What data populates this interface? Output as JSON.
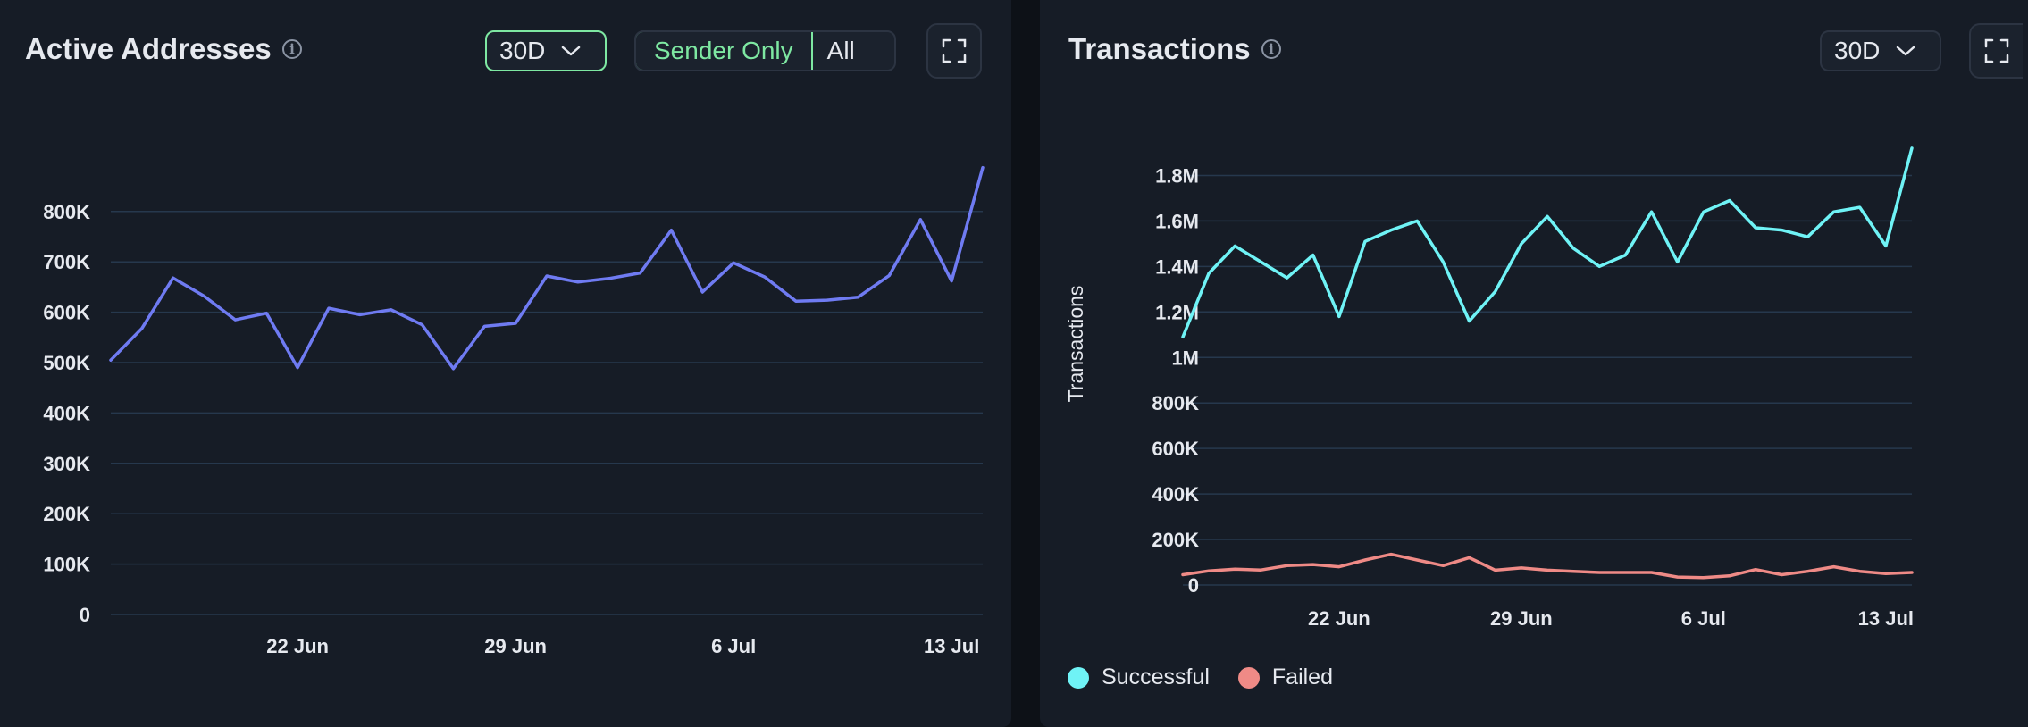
{
  "left": {
    "title": "Active Addresses",
    "range": "30D",
    "toggle": {
      "sender_only": "Sender Only",
      "all": "All"
    }
  },
  "right": {
    "title": "Transactions",
    "range": "30D",
    "legend": {
      "successful": "Successful",
      "failed": "Failed"
    }
  },
  "colors": {
    "addresses": "#6f7bf2",
    "successful": "#6ff3f6",
    "failed": "#ef8a86",
    "accent": "#7ee8a2"
  },
  "chart_data": [
    {
      "type": "line",
      "title": "Active Addresses",
      "ylim": [
        0,
        900000
      ],
      "yticks": [
        0,
        100000,
        200000,
        300000,
        400000,
        500000,
        600000,
        700000,
        800000
      ],
      "ytick_labels": [
        "0",
        "100K",
        "200K",
        "300K",
        "400K",
        "500K",
        "600K",
        "700K",
        "800K"
      ],
      "xticks": [
        {
          "label": "22 Jun",
          "index": 6
        },
        {
          "label": "29 Jun",
          "index": 13
        },
        {
          "label": "6 Jul",
          "index": 20
        },
        {
          "label": "13 Jul",
          "index": 27
        }
      ],
      "grid": true,
      "series": [
        {
          "values": [
            505000,
            568000,
            668000,
            632000,
            585000,
            598000,
            490000,
            608000,
            595000,
            605000,
            575000,
            488000,
            572000,
            578000,
            672000,
            660000,
            667000,
            678000,
            763000,
            640000,
            698000,
            670000,
            622000,
            624000,
            630000,
            673000,
            784000,
            662000,
            887000
          ]
        }
      ]
    },
    {
      "type": "line",
      "title": "Transactions",
      "ylabel": "Transactions",
      "ylim": [
        0,
        2000000
      ],
      "yticks": [
        0,
        200000,
        400000,
        600000,
        800000,
        1000000,
        1200000,
        1400000,
        1600000,
        1800000
      ],
      "ytick_labels": [
        "0",
        "200K",
        "400K",
        "600K",
        "800K",
        "1M",
        "1.2M",
        "1.4M",
        "1.6M",
        "1.8M"
      ],
      "xticks": [
        {
          "label": "22 Jun",
          "index": 6
        },
        {
          "label": "29 Jun",
          "index": 13
        },
        {
          "label": "6 Jul",
          "index": 20
        },
        {
          "label": "13 Jul",
          "index": 27
        }
      ],
      "grid": true,
      "legend": "bottom-left",
      "series": [
        {
          "name": "Successful",
          "values": [
            1090000,
            1370000,
            1490000,
            1420000,
            1350000,
            1450000,
            1180000,
            1510000,
            1560000,
            1600000,
            1420000,
            1160000,
            1290000,
            1500000,
            1620000,
            1480000,
            1400000,
            1450000,
            1640000,
            1420000,
            1640000,
            1690000,
            1570000,
            1560000,
            1530000,
            1640000,
            1660000,
            1490000,
            1920000
          ]
        },
        {
          "name": "Failed",
          "values": [
            45000,
            62000,
            70000,
            66000,
            85000,
            90000,
            80000,
            110000,
            135000,
            110000,
            85000,
            120000,
            65000,
            75000,
            65000,
            60000,
            55000,
            55000,
            55000,
            35000,
            32000,
            40000,
            68000,
            45000,
            60000,
            80000,
            60000,
            50000,
            55000
          ]
        }
      ]
    }
  ]
}
